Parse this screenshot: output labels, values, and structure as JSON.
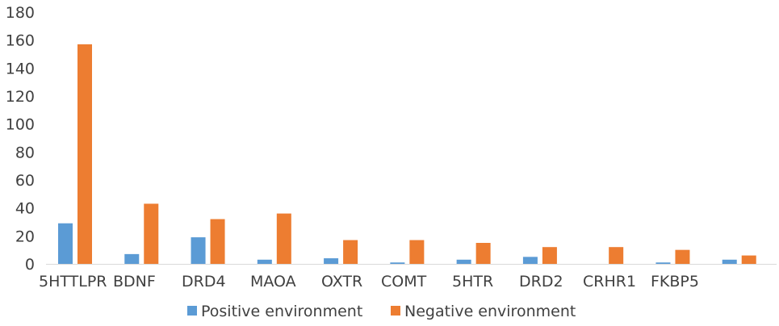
{
  "chart_data": {
    "type": "bar",
    "categories": [
      "5HTTLPR",
      "BDNF",
      "DRD4",
      "MAOA",
      "OXTR",
      "COMT",
      "5HTR",
      "DRD2",
      "CRHR1",
      "FKBP5",
      ""
    ],
    "series": [
      {
        "name": "Positive environment",
        "color": "#5b9bd5",
        "values": [
          29,
          7,
          19,
          3,
          4,
          1,
          3,
          5,
          0,
          1,
          3
        ]
      },
      {
        "name": "Negative environment",
        "color": "#ed7d31",
        "values": [
          157,
          43,
          32,
          36,
          17,
          17,
          15,
          12,
          12,
          10,
          6
        ]
      }
    ],
    "yticks": [
      0,
      20,
      40,
      60,
      80,
      100,
      120,
      140,
      160,
      180
    ],
    "ylim": [
      0,
      180
    ],
    "grid": false,
    "legend_position": "bottom"
  }
}
